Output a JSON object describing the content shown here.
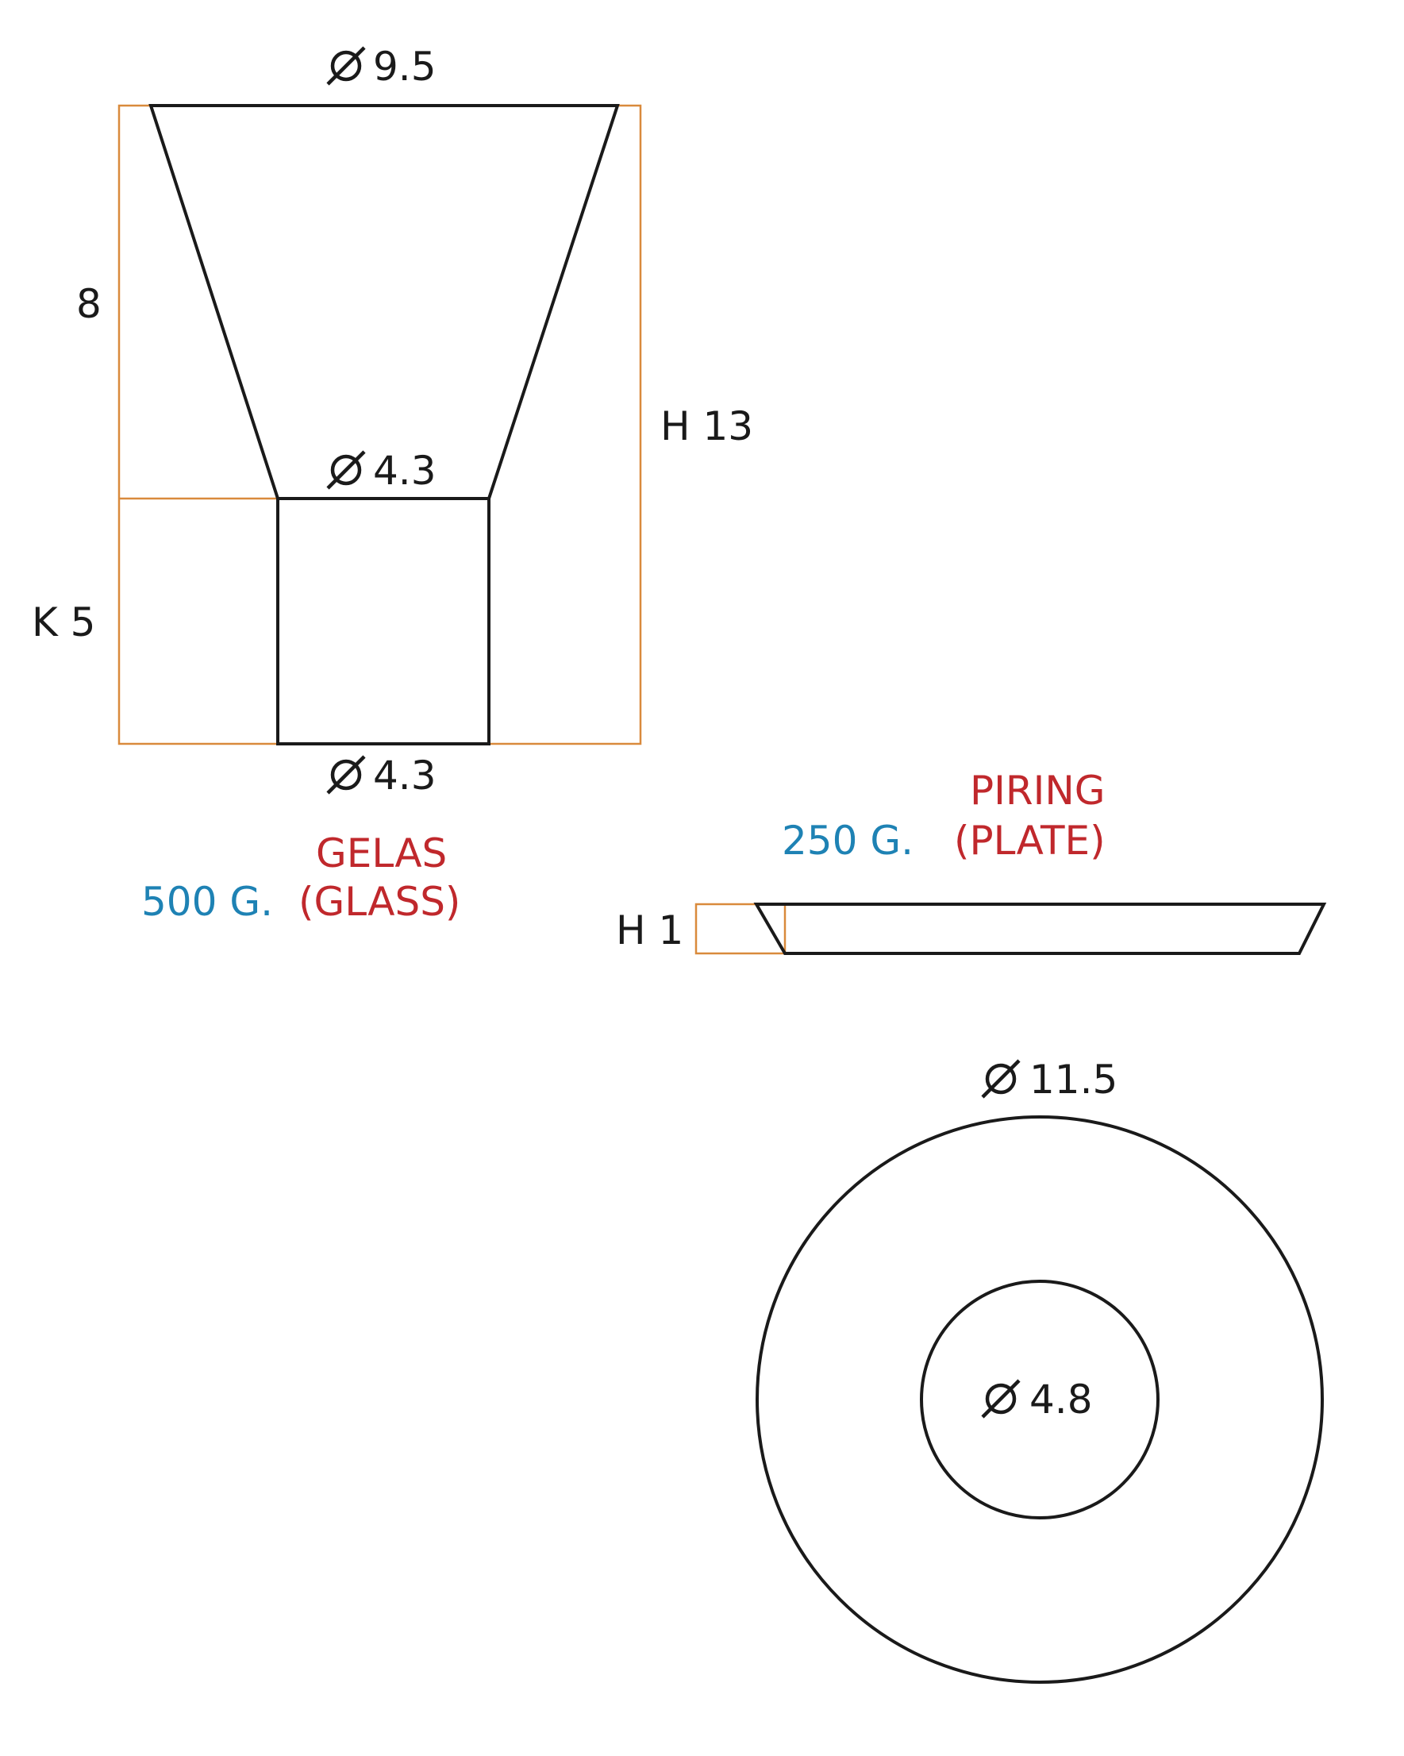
{
  "glass": {
    "dim_top": "9.5",
    "dim_middle": "4.3",
    "dim_bottom": "4.3",
    "dim_upper_height": "8",
    "dim_lower_height": "K 5",
    "dim_total_height": "H 13",
    "name": "GELAS",
    "weight": "500 G.",
    "name_en": "(GLASS)"
  },
  "plate": {
    "name": "PIRING",
    "weight": "250 G.",
    "name_en": "(PLATE)",
    "dim_height": "H 1",
    "dim_outer": "11.5",
    "dim_inner": "4.8"
  },
  "colors": {
    "outline": "#1a1a1a",
    "guide": "#d98a3c",
    "label_red": "#c0282c",
    "label_blue": "#1e82b4"
  }
}
